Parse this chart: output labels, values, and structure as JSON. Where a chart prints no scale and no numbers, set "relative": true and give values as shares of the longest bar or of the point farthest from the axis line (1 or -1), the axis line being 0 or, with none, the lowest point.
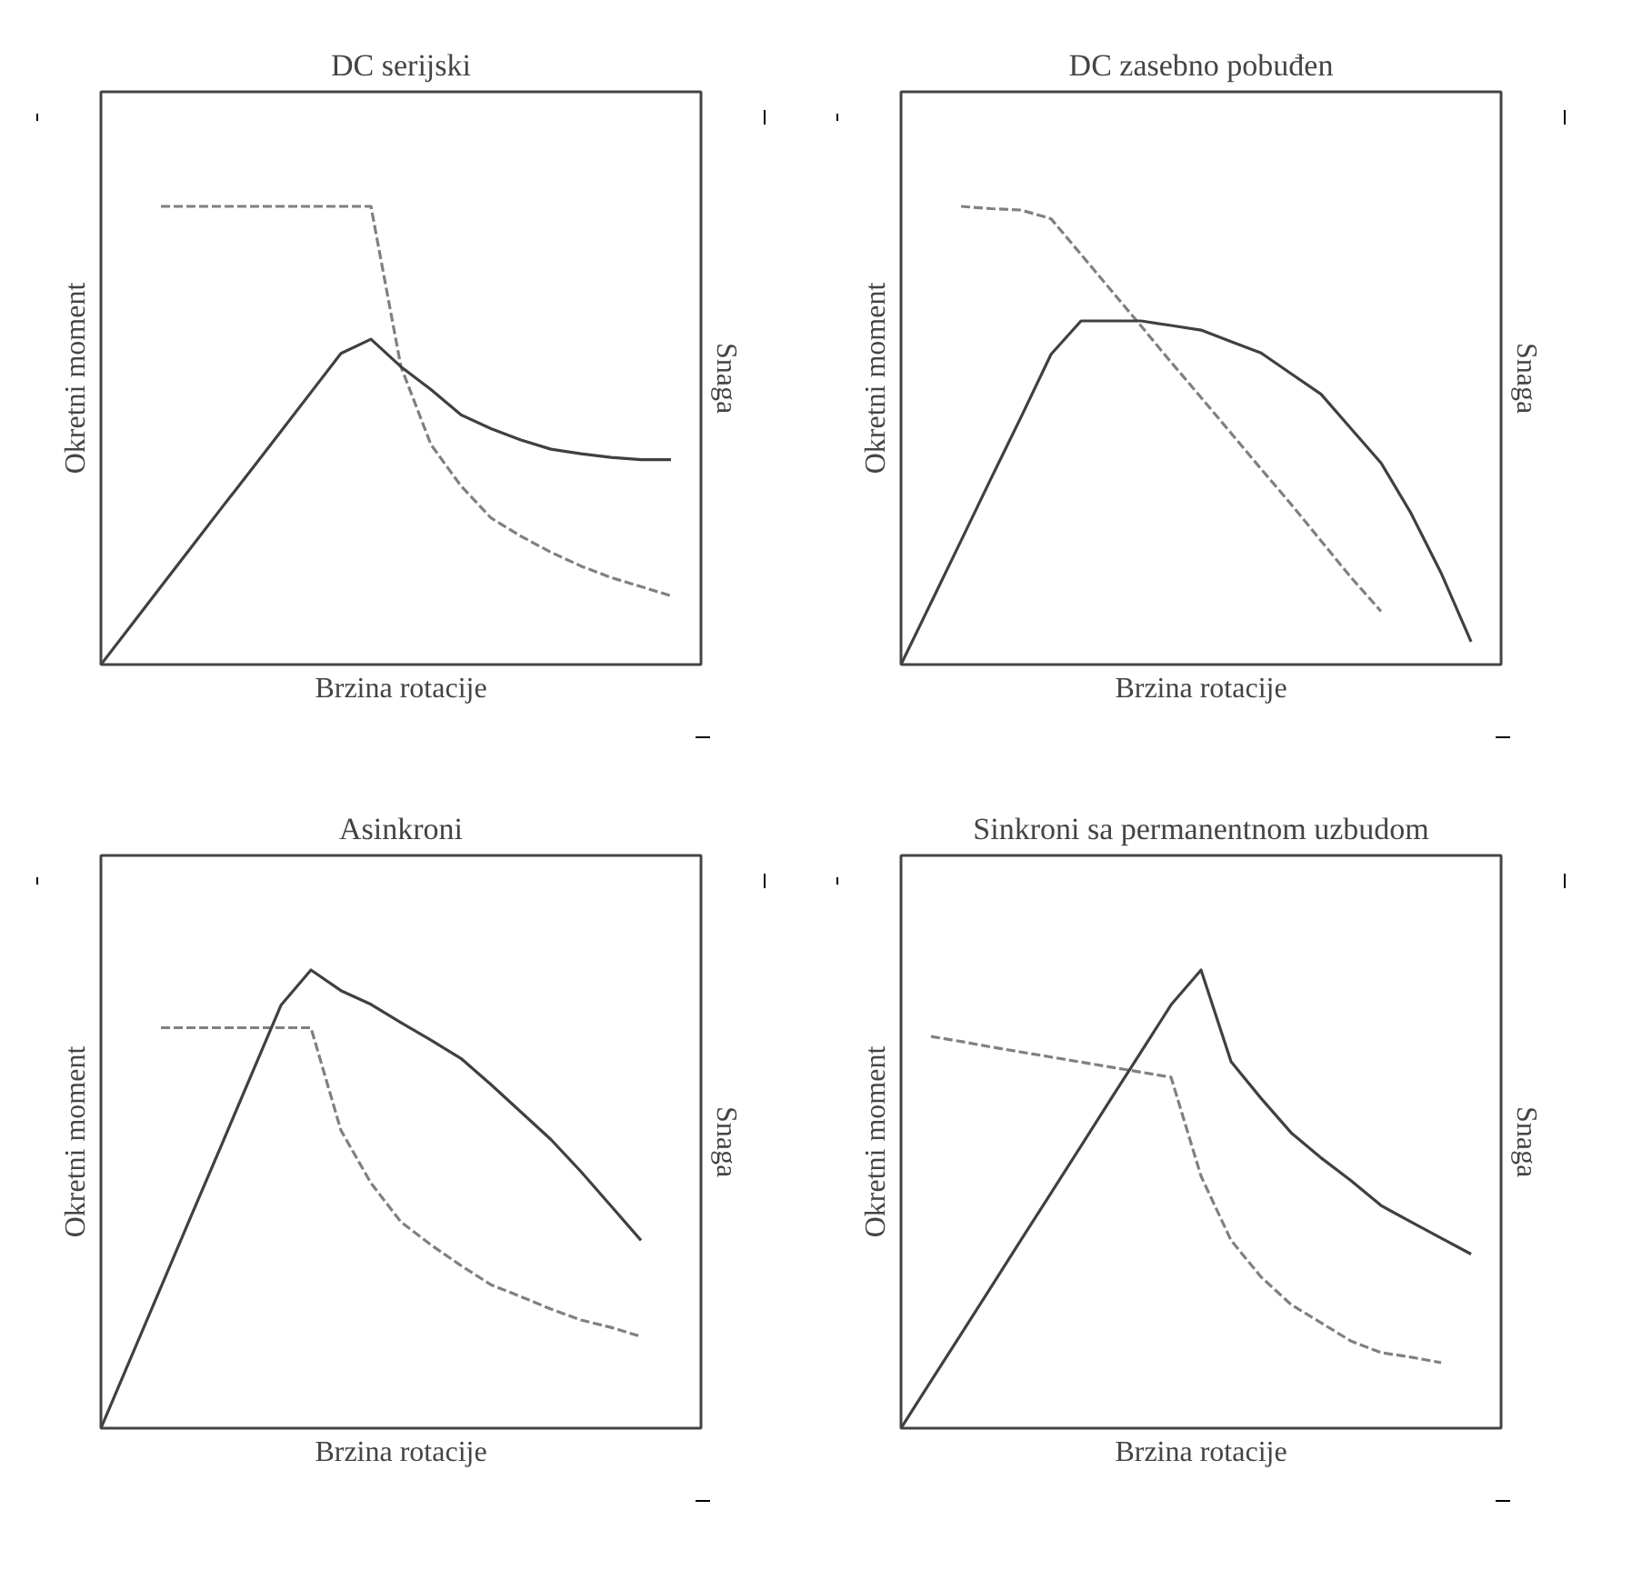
{
  "chart_data": [
    {
      "type": "line",
      "relative": true,
      "title": "DC serijski",
      "xlabel": "Brzina rotacije",
      "ylabel": "Okretni moment",
      "y2label": "Snaga",
      "categories": [
        null,
        null,
        null,
        null,
        null,
        null,
        null,
        null,
        null,
        null,
        null,
        null,
        null,
        null,
        null,
        null,
        null,
        null,
        null,
        null,
        null
      ],
      "series": [
        {
          "color": "#808080",
          "line_style": "dashed",
          "values": [
            null,
            null,
            1,
            1,
            1,
            1,
            1,
            1,
            1,
            1,
            0.65,
            0.48,
            0.39,
            0.32,
            0.28,
            0.245,
            0.215,
            0.19,
            0.17,
            0.15,
            null
          ]
        },
        {
          "color": "#404040",
          "line_style": "solid",
          "values": [
            0,
            0.085,
            0.17,
            0.255,
            0.34,
            0.424,
            0.509,
            0.594,
            0.679,
            0.71,
            0.65,
            0.6,
            0.545,
            0.515,
            0.49,
            0.47,
            0.46,
            0.452,
            0.447,
            0.447,
            null
          ]
        }
      ]
    },
    {
      "type": "line",
      "relative": true,
      "title": "DC zasebno pobuđen",
      "xlabel": "Brzina rotacije",
      "ylabel": "Okretni moment",
      "y2label": "Snaga",
      "categories": [
        null,
        null,
        null,
        null,
        null,
        null,
        null,
        null,
        null,
        null,
        null,
        null,
        null,
        null,
        null,
        null,
        null,
        null,
        null,
        null,
        null
      ],
      "series": [
        {
          "color": "#808080",
          "line_style": "dashed",
          "values": [
            null,
            null,
            1,
            0.995,
            0.992,
            0.973,
            0.895,
            0.817,
            0.739,
            0.66,
            0.583,
            0.505,
            0.427,
            0.35,
            0.27,
            0.19,
            0.116,
            null,
            null,
            null,
            null
          ]
        },
        {
          "color": "#404040",
          "line_style": "solid",
          "values": [
            0,
            0.135,
            0.27,
            0.406,
            0.54,
            0.677,
            0.75,
            0.75,
            0.75,
            0.74,
            0.73,
            0.705,
            0.68,
            0.635,
            0.59,
            0.515,
            0.44,
            0.33,
            0.2,
            0.05,
            null
          ]
        }
      ]
    },
    {
      "type": "line",
      "relative": true,
      "title": "Asinkroni",
      "xlabel": "Brzina rotacije",
      "ylabel": "Okretni moment",
      "y2label": "Snaga",
      "categories": [
        null,
        null,
        null,
        null,
        null,
        null,
        null,
        null,
        null,
        null,
        null,
        null,
        null,
        null,
        null,
        null,
        null,
        null,
        null,
        null,
        null
      ],
      "series": [
        {
          "color": "#808080",
          "line_style": "dashed",
          "values": [
            null,
            null,
            0.874,
            0.874,
            0.874,
            0.874,
            0.874,
            0.874,
            0.65,
            0.535,
            0.45,
            0.4,
            0.355,
            0.313,
            0.287,
            0.26,
            0.236,
            0.22,
            0.2,
            null,
            null
          ]
        },
        {
          "color": "#404040",
          "line_style": "solid",
          "values": [
            0,
            0.154,
            0.308,
            0.462,
            0.615,
            0.769,
            0.923,
            1,
            0.955,
            0.925,
            0.885,
            0.847,
            0.807,
            0.75,
            0.69,
            0.63,
            0.56,
            0.485,
            0.41,
            null,
            null
          ]
        }
      ]
    },
    {
      "type": "line",
      "relative": true,
      "title": "Sinkroni sa permanentnom uzbudom",
      "xlabel": "Brzina rotacije",
      "ylabel": "Okretni moment",
      "y2label": "Snaga",
      "categories": [
        null,
        null,
        null,
        null,
        null,
        null,
        null,
        null,
        null,
        null,
        null,
        null,
        null,
        null,
        null,
        null,
        null,
        null,
        null,
        null,
        null
      ],
      "series": [
        {
          "color": "#808080",
          "line_style": "dashed",
          "values": [
            null,
            0.855,
            0.844,
            0.832,
            0.821,
            0.81,
            0.799,
            0.788,
            0.777,
            0.766,
            0.55,
            0.41,
            0.33,
            0.27,
            0.23,
            0.19,
            0.165,
            0.155,
            0.143,
            null,
            null
          ]
        },
        {
          "color": "#404040",
          "line_style": "solid",
          "values": [
            0,
            0.103,
            0.205,
            0.308,
            0.411,
            0.513,
            0.616,
            0.719,
            0.821,
            0.924,
            1,
            0.8,
            0.72,
            0.645,
            0.59,
            0.54,
            0.486,
            0.45,
            0.415,
            0.38,
            null
          ]
        }
      ]
    }
  ]
}
